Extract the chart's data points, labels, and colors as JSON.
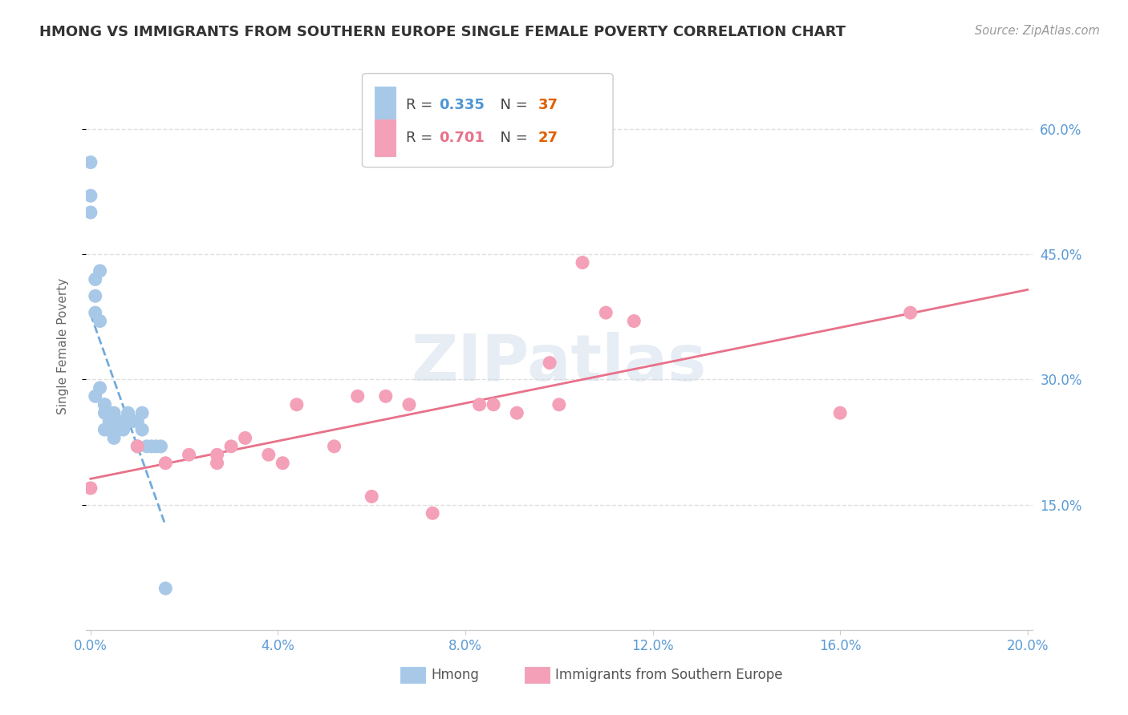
{
  "title": "HMONG VS IMMIGRANTS FROM SOUTHERN EUROPE SINGLE FEMALE POVERTY CORRELATION CHART",
  "source": "Source: ZipAtlas.com",
  "ylabel": "Single Female Poverty",
  "y_ticks_right": [
    "15.0%",
    "30.0%",
    "45.0%",
    "60.0%"
  ],
  "y_tick_vals": [
    0.15,
    0.3,
    0.45,
    0.6
  ],
  "x_lim": [
    -0.001,
    0.201
  ],
  "y_lim": [
    0.0,
    0.68
  ],
  "hmong_R": 0.335,
  "hmong_N": 37,
  "south_europe_R": 0.701,
  "south_europe_N": 27,
  "hmong_color": "#a8c8e8",
  "south_europe_color": "#f4a0b8",
  "hmong_line_color": "#4e96d3",
  "south_europe_line_color": "#e8718a",
  "watermark": "ZIPatlas",
  "hmong_x": [
    0.0,
    0.0,
    0.0,
    0.001,
    0.001,
    0.001,
    0.001,
    0.002,
    0.002,
    0.002,
    0.003,
    0.003,
    0.003,
    0.003,
    0.004,
    0.004,
    0.004,
    0.005,
    0.005,
    0.005,
    0.005,
    0.006,
    0.006,
    0.007,
    0.007,
    0.008,
    0.008,
    0.009,
    0.01,
    0.01,
    0.011,
    0.011,
    0.012,
    0.013,
    0.014,
    0.015,
    0.016
  ],
  "hmong_y": [
    0.56,
    0.52,
    0.5,
    0.42,
    0.4,
    0.38,
    0.28,
    0.43,
    0.37,
    0.29,
    0.27,
    0.27,
    0.26,
    0.24,
    0.26,
    0.25,
    0.24,
    0.26,
    0.25,
    0.24,
    0.23,
    0.25,
    0.24,
    0.25,
    0.24,
    0.26,
    0.25,
    0.25,
    0.25,
    0.22,
    0.26,
    0.24,
    0.22,
    0.22,
    0.22,
    0.22,
    0.05
  ],
  "south_europe_x": [
    0.0,
    0.01,
    0.016,
    0.021,
    0.027,
    0.027,
    0.03,
    0.033,
    0.038,
    0.041,
    0.044,
    0.052,
    0.057,
    0.06,
    0.063,
    0.068,
    0.073,
    0.083,
    0.086,
    0.091,
    0.098,
    0.1,
    0.105,
    0.11,
    0.116,
    0.16,
    0.175
  ],
  "south_europe_y": [
    0.17,
    0.22,
    0.2,
    0.21,
    0.21,
    0.2,
    0.22,
    0.23,
    0.21,
    0.2,
    0.27,
    0.22,
    0.28,
    0.16,
    0.28,
    0.27,
    0.14,
    0.27,
    0.27,
    0.26,
    0.32,
    0.27,
    0.44,
    0.38,
    0.37,
    0.26,
    0.38
  ],
  "background_color": "#ffffff",
  "grid_color": "#e0e0e0",
  "title_color": "#333333",
  "tick_label_color": "#5b9bd5"
}
